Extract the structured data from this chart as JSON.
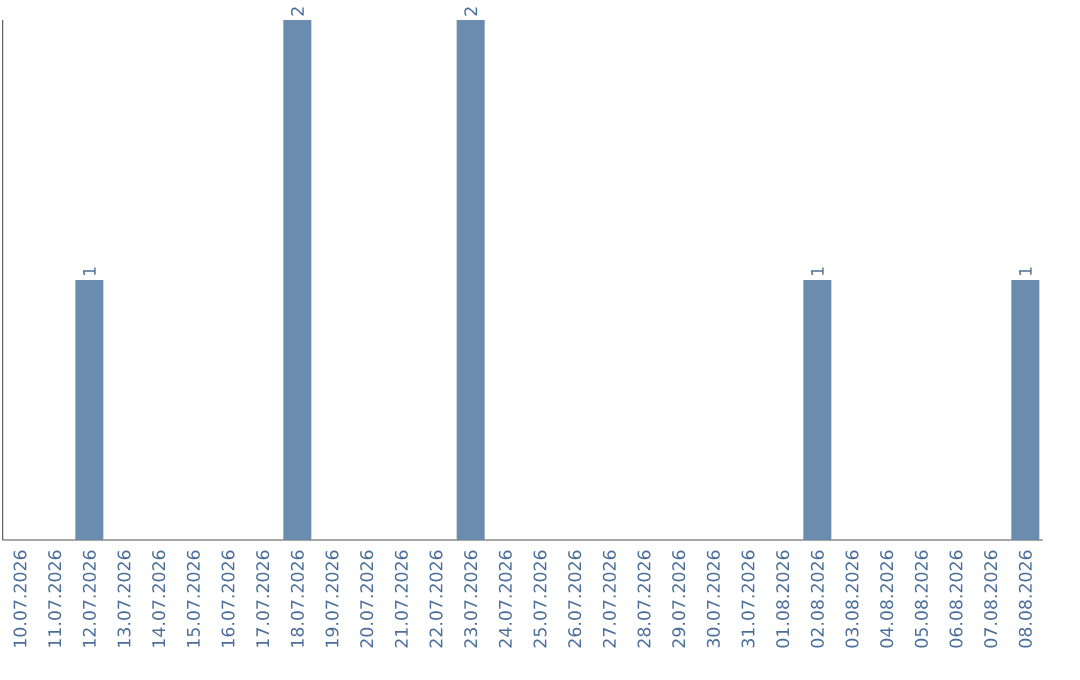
{
  "chart_data": {
    "type": "bar",
    "categories": [
      "10.07.2026",
      "11.07.2026",
      "12.07.2026",
      "13.07.2026",
      "14.07.2026",
      "15.07.2026",
      "16.07.2026",
      "17.07.2026",
      "18.07.2026",
      "19.07.2026",
      "20.07.2026",
      "21.07.2026",
      "22.07.2026",
      "23.07.2026",
      "24.07.2026",
      "25.07.2026",
      "26.07.2026",
      "27.07.2026",
      "28.07.2026",
      "29.07.2026",
      "30.07.2026",
      "31.07.2026",
      "01.08.2026",
      "02.08.2026",
      "03.08.2026",
      "04.08.2026",
      "05.08.2026",
      "06.08.2026",
      "07.08.2026",
      "08.08.2026"
    ],
    "values": [
      0,
      0,
      1,
      0,
      0,
      0,
      0,
      0,
      2,
      0,
      0,
      0,
      0,
      2,
      0,
      0,
      0,
      0,
      0,
      0,
      0,
      0,
      0,
      1,
      0,
      0,
      0,
      0,
      0,
      1
    ],
    "value_labels": [
      null,
      null,
      "1",
      null,
      null,
      null,
      null,
      null,
      "2",
      null,
      null,
      null,
      null,
      "2",
      null,
      null,
      null,
      null,
      null,
      null,
      null,
      null,
      null,
      "1",
      null,
      null,
      null,
      null,
      null,
      "1"
    ],
    "color": "#6a8caf",
    "ylim": [
      0,
      2
    ],
    "tick_labels": "x",
    "grid": false
  }
}
